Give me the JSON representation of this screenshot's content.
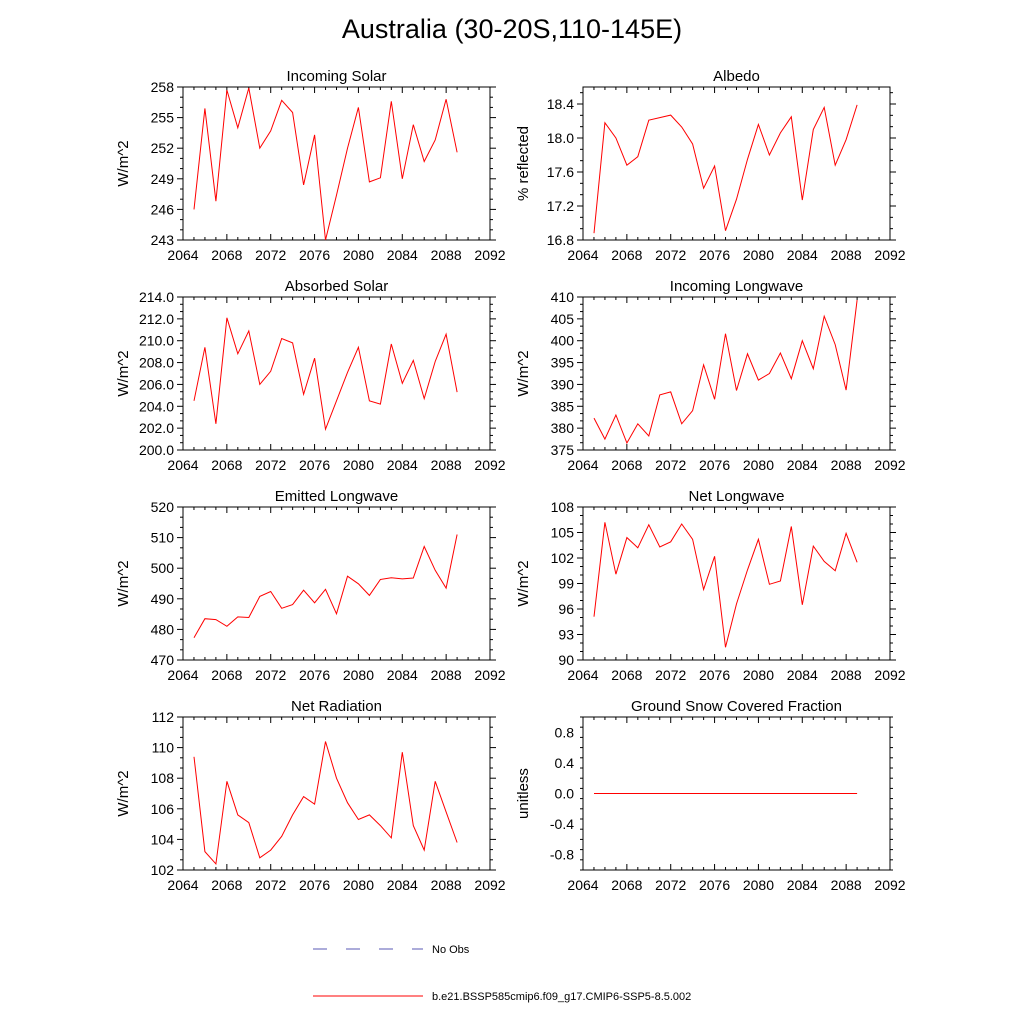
{
  "page": {
    "title": "Australia (30-20S,110-145E)"
  },
  "chart_data": [
    {
      "type": "line",
      "title": "Incoming Solar",
      "ylabel": "W/m^2",
      "xlim": [
        2064,
        2092
      ],
      "ylim": [
        243,
        258
      ],
      "xticks": [
        2064,
        2068,
        2072,
        2076,
        2080,
        2084,
        2088,
        2092
      ],
      "yticks": [
        243,
        246,
        249,
        252,
        255,
        258
      ],
      "ytick_labels": [
        "243",
        "246",
        "249",
        "252",
        "255",
        "258"
      ],
      "x": [
        2065,
        2066,
        2067,
        2068,
        2069,
        2070,
        2071,
        2072,
        2073,
        2074,
        2075,
        2076,
        2077,
        2078,
        2079,
        2080,
        2081,
        2082,
        2083,
        2084,
        2085,
        2086,
        2087,
        2088,
        2089
      ],
      "series": [
        {
          "color": "#ff0000",
          "values": [
            246.0,
            255.9,
            246.8,
            257.7,
            254.0,
            257.9,
            252.0,
            253.7,
            256.7,
            255.5,
            248.4,
            253.3,
            243.0,
            247.4,
            252.0,
            256.0,
            248.7,
            249.1,
            256.6,
            249.0,
            254.3,
            250.7,
            252.8,
            256.8,
            251.6
          ]
        }
      ]
    },
    {
      "type": "line",
      "title": "Albedo",
      "ylabel": "% reflected",
      "xlim": [
        2064,
        2092
      ],
      "ylim": [
        16.8,
        18.6
      ],
      "xticks": [
        2064,
        2068,
        2072,
        2076,
        2080,
        2084,
        2088,
        2092
      ],
      "yticks": [
        16.8,
        17.2,
        17.6,
        18.0,
        18.4
      ],
      "ytick_labels": [
        "16.8",
        "17.2",
        "17.6",
        "18.0",
        "18.4"
      ],
      "x": [
        2065,
        2066,
        2067,
        2068,
        2069,
        2070,
        2071,
        2072,
        2073,
        2074,
        2075,
        2076,
        2077,
        2078,
        2079,
        2080,
        2081,
        2082,
        2083,
        2084,
        2085,
        2086,
        2087,
        2088,
        2089
      ],
      "series": [
        {
          "color": "#ff0000",
          "values": [
            16.88,
            18.18,
            18.0,
            17.68,
            17.78,
            18.21,
            18.24,
            18.27,
            18.13,
            17.93,
            17.41,
            17.67,
            16.91,
            17.28,
            17.75,
            18.16,
            17.8,
            18.06,
            18.25,
            17.27,
            18.1,
            18.36,
            17.68,
            17.98,
            18.39
          ]
        }
      ]
    },
    {
      "type": "line",
      "title": "Absorbed Solar",
      "ylabel": "W/m^2",
      "xlim": [
        2064,
        2092
      ],
      "ylim": [
        200.0,
        214.0
      ],
      "xticks": [
        2064,
        2068,
        2072,
        2076,
        2080,
        2084,
        2088,
        2092
      ],
      "yticks": [
        200,
        202,
        204,
        206,
        208,
        210,
        212,
        214
      ],
      "ytick_labels": [
        "200.0",
        "202.0",
        "204.0",
        "206.0",
        "208.0",
        "210.0",
        "212.0",
        "214.0"
      ],
      "x": [
        2065,
        2066,
        2067,
        2068,
        2069,
        2070,
        2071,
        2072,
        2073,
        2074,
        2075,
        2076,
        2077,
        2078,
        2079,
        2080,
        2081,
        2082,
        2083,
        2084,
        2085,
        2086,
        2087,
        2088,
        2089
      ],
      "series": [
        {
          "color": "#ff0000",
          "values": [
            204.5,
            209.4,
            202.4,
            212.1,
            208.8,
            210.9,
            206.0,
            207.2,
            210.2,
            209.8,
            205.1,
            208.4,
            201.9,
            204.5,
            207.1,
            209.4,
            204.5,
            204.2,
            209.7,
            206.1,
            208.2,
            204.7,
            208.1,
            210.6,
            205.3
          ]
        }
      ]
    },
    {
      "type": "line",
      "title": "Incoming Longwave",
      "ylabel": "W/m^2",
      "xlim": [
        2064,
        2092
      ],
      "ylim": [
        375,
        410
      ],
      "xticks": [
        2064,
        2068,
        2072,
        2076,
        2080,
        2084,
        2088,
        2092
      ],
      "yticks": [
        375,
        380,
        385,
        390,
        395,
        400,
        405,
        410
      ],
      "ytick_labels": [
        "375",
        "380",
        "385",
        "390",
        "395",
        "400",
        "405",
        "410"
      ],
      "x": [
        2065,
        2066,
        2067,
        2068,
        2069,
        2070,
        2071,
        2072,
        2073,
        2074,
        2075,
        2076,
        2077,
        2078,
        2079,
        2080,
        2081,
        2082,
        2083,
        2084,
        2085,
        2086,
        2087,
        2088,
        2089
      ],
      "series": [
        {
          "color": "#ff0000",
          "values": [
            382.3,
            377.5,
            383.0,
            376.6,
            381.0,
            378.2,
            387.6,
            388.3,
            381.0,
            384.0,
            394.5,
            386.6,
            401.6,
            388.6,
            397.0,
            391.0,
            392.5,
            397.2,
            391.3,
            400.0,
            393.6,
            405.6,
            399.1,
            388.7,
            409.3
          ]
        }
      ]
    },
    {
      "type": "line",
      "title": "Emitted Longwave",
      "ylabel": "W/m^2",
      "xlim": [
        2064,
        2092
      ],
      "ylim": [
        470,
        520
      ],
      "xticks": [
        2064,
        2068,
        2072,
        2076,
        2080,
        2084,
        2088,
        2092
      ],
      "yticks": [
        470,
        480,
        490,
        500,
        510,
        520
      ],
      "ytick_labels": [
        "470",
        "480",
        "490",
        "500",
        "510",
        "520"
      ],
      "x": [
        2065,
        2066,
        2067,
        2068,
        2069,
        2070,
        2071,
        2072,
        2073,
        2074,
        2075,
        2076,
        2077,
        2078,
        2079,
        2080,
        2081,
        2082,
        2083,
        2084,
        2085,
        2086,
        2087,
        2088,
        2089
      ],
      "series": [
        {
          "color": "#ff0000",
          "values": [
            477.3,
            483.5,
            483.2,
            481.0,
            484.1,
            483.9,
            490.8,
            492.4,
            486.9,
            488.1,
            492.8,
            488.7,
            493.1,
            485.1,
            497.4,
            494.9,
            491.1,
            496.3,
            496.9,
            496.5,
            496.8,
            507.1,
            499.3,
            493.5,
            511.0
          ]
        }
      ]
    },
    {
      "type": "line",
      "title": "Net Longwave",
      "ylabel": "W/m^2",
      "xlim": [
        2064,
        2092
      ],
      "ylim": [
        90,
        108
      ],
      "xticks": [
        2064,
        2068,
        2072,
        2076,
        2080,
        2084,
        2088,
        2092
      ],
      "yticks": [
        90,
        93,
        96,
        99,
        102,
        105,
        108
      ],
      "ytick_labels": [
        "90",
        "93",
        "96",
        "99",
        "102",
        "105",
        "108"
      ],
      "x": [
        2065,
        2066,
        2067,
        2068,
        2069,
        2070,
        2071,
        2072,
        2073,
        2074,
        2075,
        2076,
        2077,
        2078,
        2079,
        2080,
        2081,
        2082,
        2083,
        2084,
        2085,
        2086,
        2087,
        2088,
        2089
      ],
      "series": [
        {
          "color": "#ff0000",
          "values": [
            95.1,
            106.2,
            100.1,
            104.4,
            103.2,
            105.9,
            103.3,
            103.9,
            106.0,
            104.2,
            98.3,
            102.2,
            91.5,
            96.6,
            100.6,
            104.2,
            98.9,
            99.3,
            105.7,
            96.5,
            103.4,
            101.6,
            100.5,
            104.9,
            101.5
          ]
        }
      ]
    },
    {
      "type": "line",
      "title": "Net Radiation",
      "ylabel": "W/m^2",
      "xlim": [
        2064,
        2092
      ],
      "ylim": [
        102,
        112
      ],
      "xticks": [
        2064,
        2068,
        2072,
        2076,
        2080,
        2084,
        2088,
        2092
      ],
      "yticks": [
        102,
        104,
        106,
        108,
        110,
        112
      ],
      "ytick_labels": [
        "102",
        "104",
        "106",
        "108",
        "110",
        "112"
      ],
      "x": [
        2065,
        2066,
        2067,
        2068,
        2069,
        2070,
        2071,
        2072,
        2073,
        2074,
        2075,
        2076,
        2077,
        2078,
        2079,
        2080,
        2081,
        2082,
        2083,
        2084,
        2085,
        2086,
        2087,
        2088,
        2089
      ],
      "series": [
        {
          "color": "#ff0000",
          "values": [
            109.4,
            103.2,
            102.4,
            107.8,
            105.6,
            105.1,
            102.8,
            103.3,
            104.2,
            105.6,
            106.8,
            106.3,
            110.4,
            108.0,
            106.4,
            105.3,
            105.6,
            104.9,
            104.1,
            109.7,
            104.9,
            103.3,
            107.8,
            105.8,
            103.8
          ]
        }
      ]
    },
    {
      "type": "line",
      "title": "Ground Snow Covered Fraction",
      "ylabel": "unitless",
      "xlim": [
        2064,
        2092
      ],
      "ylim": [
        -1.0,
        1.0
      ],
      "xticks": [
        2064,
        2068,
        2072,
        2076,
        2080,
        2084,
        2088,
        2092
      ],
      "yticks": [
        -0.8,
        -0.4,
        0.0,
        0.4,
        0.8
      ],
      "ytick_labels": [
        "-0.8",
        "-0.4",
        "0.0",
        "0.4",
        "0.8"
      ],
      "x": [
        2065,
        2066,
        2067,
        2068,
        2069,
        2070,
        2071,
        2072,
        2073,
        2074,
        2075,
        2076,
        2077,
        2078,
        2079,
        2080,
        2081,
        2082,
        2083,
        2084,
        2085,
        2086,
        2087,
        2088,
        2089
      ],
      "series": [
        {
          "color": "#ff0000",
          "values": [
            0,
            0,
            0,
            0,
            0,
            0,
            0,
            0,
            0,
            0,
            0,
            0,
            0,
            0,
            0,
            0,
            0,
            0,
            0,
            0,
            0,
            0,
            0,
            0,
            0
          ]
        }
      ]
    }
  ],
  "legend": {
    "placement": "bottom-center",
    "items": [
      {
        "label": "No Obs",
        "color": "#5a5ab4",
        "style": "dashed"
      },
      {
        "label": "b.e21.BSSP585cmip6.f09_g17.CMIP6-SSP5-8.5.002",
        "color": "#ff0000",
        "style": "solid"
      }
    ]
  }
}
